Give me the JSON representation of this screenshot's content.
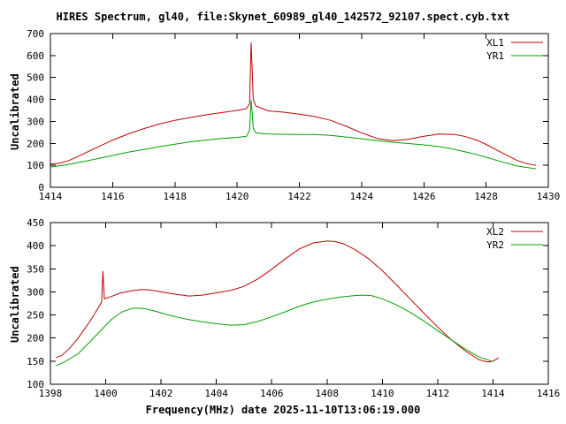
{
  "title": "HIRES Spectrum, gl40, file:Skynet_60989_gl40_142572_92107.spect.cyb.txt",
  "xlabel": "Frequency(MHz) date 2025-11-10T13:06:19.000",
  "colors": {
    "red": "#c00000",
    "green": "#00a000",
    "axis": "#000000",
    "background": "#ffffff"
  },
  "chart_data": [
    {
      "type": "line",
      "title": "",
      "ylabel": "Uncalibrated",
      "xlim": [
        1414,
        1430
      ],
      "ylim": [
        0,
        700
      ],
      "xticks": [
        1414,
        1416,
        1418,
        1420,
        1422,
        1424,
        1426,
        1428,
        1430
      ],
      "yticks": [
        0,
        100,
        200,
        300,
        400,
        500,
        600,
        700
      ],
      "grid": false,
      "legend_position": "top-right",
      "series": [
        {
          "name": "XL1",
          "color": "#c00000",
          "points": [
            [
              1414.0,
              105
            ],
            [
              1414.3,
              110
            ],
            [
              1414.6,
              122
            ],
            [
              1415.0,
              148
            ],
            [
              1415.5,
              182
            ],
            [
              1416.0,
              215
            ],
            [
              1416.5,
              243
            ],
            [
              1417.0,
              267
            ],
            [
              1417.5,
              288
            ],
            [
              1418.0,
              305
            ],
            [
              1418.5,
              318
            ],
            [
              1419.0,
              330
            ],
            [
              1419.5,
              340
            ],
            [
              1420.0,
              350
            ],
            [
              1420.3,
              358
            ],
            [
              1420.4,
              380
            ],
            [
              1420.45,
              660
            ],
            [
              1420.52,
              400
            ],
            [
              1420.6,
              370
            ],
            [
              1421.0,
              348
            ],
            [
              1421.5,
              342
            ],
            [
              1422.0,
              333
            ],
            [
              1422.5,
              322
            ],
            [
              1423.0,
              305
            ],
            [
              1423.5,
              278
            ],
            [
              1424.0,
              248
            ],
            [
              1424.5,
              222
            ],
            [
              1425.0,
              212
            ],
            [
              1425.5,
              218
            ],
            [
              1426.0,
              232
            ],
            [
              1426.5,
              242
            ],
            [
              1427.0,
              240
            ],
            [
              1427.3,
              232
            ],
            [
              1427.7,
              215
            ],
            [
              1428.0,
              195
            ],
            [
              1428.5,
              158
            ],
            [
              1429.0,
              122
            ],
            [
              1429.3,
              108
            ],
            [
              1429.6,
              100
            ]
          ]
        },
        {
          "name": "YR1",
          "color": "#00a000",
          "points": [
            [
              1414.0,
              92
            ],
            [
              1414.5,
              102
            ],
            [
              1415.0,
              115
            ],
            [
              1415.5,
              130
            ],
            [
              1416.0,
              145
            ],
            [
              1416.5,
              160
            ],
            [
              1417.0,
              172
            ],
            [
              1417.5,
              185
            ],
            [
              1418.0,
              196
            ],
            [
              1418.5,
              207
            ],
            [
              1419.0,
              215
            ],
            [
              1419.5,
              222
            ],
            [
              1420.0,
              227
            ],
            [
              1420.3,
              232
            ],
            [
              1420.4,
              260
            ],
            [
              1420.45,
              398
            ],
            [
              1420.52,
              268
            ],
            [
              1420.6,
              248
            ],
            [
              1421.0,
              242
            ],
            [
              1421.5,
              241
            ],
            [
              1422.0,
              240
            ],
            [
              1422.5,
              240
            ],
            [
              1423.0,
              236
            ],
            [
              1423.5,
              229
            ],
            [
              1424.0,
              221
            ],
            [
              1424.5,
              212
            ],
            [
              1425.0,
              205
            ],
            [
              1425.5,
              199
            ],
            [
              1426.0,
              193
            ],
            [
              1426.5,
              185
            ],
            [
              1427.0,
              172
            ],
            [
              1427.5,
              156
            ],
            [
              1428.0,
              137
            ],
            [
              1428.5,
              116
            ],
            [
              1429.0,
              97
            ],
            [
              1429.6,
              84
            ]
          ]
        }
      ]
    },
    {
      "type": "line",
      "title": "",
      "ylabel": "Uncalibrated",
      "xlim": [
        1398,
        1416
      ],
      "ylim": [
        100,
        450
      ],
      "xticks": [
        1398,
        1400,
        1402,
        1404,
        1406,
        1408,
        1410,
        1412,
        1414,
        1416
      ],
      "yticks": [
        100,
        150,
        200,
        250,
        300,
        350,
        400,
        450
      ],
      "grid": false,
      "legend_position": "top-right",
      "series": [
        {
          "name": "XL2",
          "color": "#c00000",
          "points": [
            [
              1398.2,
              158
            ],
            [
              1398.4,
              162
            ],
            [
              1398.7,
              178
            ],
            [
              1399.0,
              200
            ],
            [
              1399.3,
              225
            ],
            [
              1399.6,
              252
            ],
            [
              1399.85,
              278
            ],
            [
              1399.9,
              345
            ],
            [
              1399.95,
              285
            ],
            [
              1400.2,
              290
            ],
            [
              1400.5,
              297
            ],
            [
              1401.0,
              303
            ],
            [
              1401.3,
              305
            ],
            [
              1401.6,
              304
            ],
            [
              1402.0,
              300
            ],
            [
              1402.5,
              295
            ],
            [
              1403.0,
              291
            ],
            [
              1403.5,
              293
            ],
            [
              1404.0,
              298
            ],
            [
              1404.5,
              303
            ],
            [
              1405.0,
              312
            ],
            [
              1405.5,
              328
            ],
            [
              1406.0,
              349
            ],
            [
              1406.5,
              372
            ],
            [
              1407.0,
              393
            ],
            [
              1407.5,
              406
            ],
            [
              1408.0,
              410
            ],
            [
              1408.3,
              409
            ],
            [
              1408.6,
              404
            ],
            [
              1409.0,
              392
            ],
            [
              1409.5,
              372
            ],
            [
              1410.0,
              346
            ],
            [
              1410.5,
              316
            ],
            [
              1411.0,
              285
            ],
            [
              1411.5,
              254
            ],
            [
              1412.0,
              224
            ],
            [
              1412.5,
              196
            ],
            [
              1413.0,
              172
            ],
            [
              1413.5,
              153
            ],
            [
              1413.8,
              148
            ],
            [
              1414.0,
              150
            ],
            [
              1414.2,
              157
            ]
          ]
        },
        {
          "name": "YR2",
          "color": "#00a000",
          "points": [
            [
              1398.2,
              140
            ],
            [
              1398.5,
              148
            ],
            [
              1399.0,
              166
            ],
            [
              1399.4,
              190
            ],
            [
              1399.8,
              215
            ],
            [
              1400.2,
              240
            ],
            [
              1400.6,
              257
            ],
            [
              1401.0,
              265
            ],
            [
              1401.4,
              264
            ],
            [
              1401.8,
              258
            ],
            [
              1402.2,
              251
            ],
            [
              1402.6,
              245
            ],
            [
              1403.0,
              240
            ],
            [
              1403.5,
              235
            ],
            [
              1404.0,
              231
            ],
            [
              1404.5,
              228
            ],
            [
              1405.0,
              229
            ],
            [
              1405.5,
              236
            ],
            [
              1406.0,
              246
            ],
            [
              1406.5,
              257
            ],
            [
              1407.0,
              269
            ],
            [
              1407.5,
              278
            ],
            [
              1408.0,
              284
            ],
            [
              1408.5,
              289
            ],
            [
              1409.0,
              292
            ],
            [
              1409.3,
              293
            ],
            [
              1409.6,
              292
            ],
            [
              1410.0,
              285
            ],
            [
              1410.5,
              272
            ],
            [
              1411.0,
              256
            ],
            [
              1411.5,
              237
            ],
            [
              1412.0,
              216
            ],
            [
              1412.5,
              196
            ],
            [
              1413.0,
              176
            ],
            [
              1413.5,
              159
            ],
            [
              1414.0,
              149
            ]
          ]
        }
      ]
    }
  ]
}
